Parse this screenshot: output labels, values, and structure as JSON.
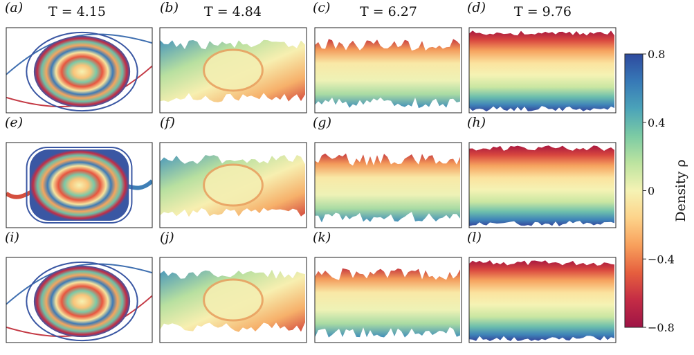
{
  "figure": {
    "time_labels": [
      "T = 4.15",
      "T = 4.84",
      "T = 6.27",
      "T = 9.76"
    ],
    "panels": [
      {
        "label": "(a)",
        "kind": "laminar",
        "shape": "tilted"
      },
      {
        "label": "(b)",
        "kind": "billow"
      },
      {
        "label": "(c)",
        "kind": "mixing"
      },
      {
        "label": "(d)",
        "kind": "layered"
      },
      {
        "label": "(e)",
        "kind": "laminar",
        "shape": "square"
      },
      {
        "label": "(f)",
        "kind": "billow"
      },
      {
        "label": "(g)",
        "kind": "mixing"
      },
      {
        "label": "(h)",
        "kind": "layered"
      },
      {
        "label": "(i)",
        "kind": "laminar",
        "shape": "tilted"
      },
      {
        "label": "(j)",
        "kind": "billow"
      },
      {
        "label": "(k)",
        "kind": "mixing"
      },
      {
        "label": "(l)",
        "kind": "layered"
      }
    ]
  },
  "colorbar": {
    "label": "Density ρ",
    "min": -0.8,
    "max": 0.8,
    "ticks": [
      {
        "value": 0.8,
        "label": "0.8"
      },
      {
        "value": 0.4,
        "label": "0.4"
      },
      {
        "value": 0,
        "label": "0"
      },
      {
        "value": -0.4,
        "label": "−0.4"
      },
      {
        "value": -0.8,
        "label": "−0.8"
      }
    ],
    "colormap": [
      "#2e4a9e",
      "#3779b7",
      "#4ba3b9",
      "#7ccba4",
      "#bde4a0",
      "#f5f3b4",
      "#fdd38a",
      "#f8a05c",
      "#e65f3e",
      "#c42c45",
      "#9e1445"
    ]
  }
}
